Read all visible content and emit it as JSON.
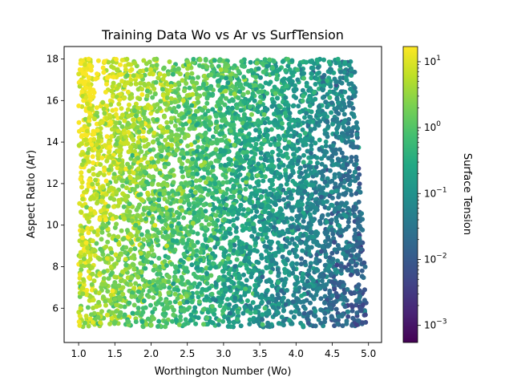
{
  "chart_data": {
    "type": "scatter",
    "title": "Training Data Wo vs Ar vs SurfTension",
    "xlabel": "Worthington Number (Wo)",
    "ylabel": "Aspect Ratio (Ar)",
    "xlim": [
      0.8,
      5.18
    ],
    "ylim": [
      4.35,
      18.6
    ],
    "x_ticks": [
      "1.0",
      "1.5",
      "2.0",
      "2.5",
      "3.0",
      "3.5",
      "4.0",
      "4.5",
      "5.0"
    ],
    "y_ticks": [
      "6",
      "8",
      "10",
      "12",
      "14",
      "16",
      "18"
    ],
    "grid": false,
    "colorbar": {
      "label": "Surface Tension",
      "scale": "log",
      "colormap": "viridis",
      "range": [
        0.00055,
        17
      ],
      "ticks": [
        {
          "base": "10",
          "exp": "1",
          "value": 10
        },
        {
          "base": "10",
          "exp": "0",
          "value": 1
        },
        {
          "base": "10",
          "exp": "−1",
          "value": 0.1
        },
        {
          "base": "10",
          "exp": "−2",
          "value": 0.01
        },
        {
          "base": "10",
          "exp": "−3",
          "value": 0.001
        }
      ]
    },
    "point_distribution": {
      "description_source": "approximate sampled cloud",
      "x_range": [
        1.0,
        5.0
      ],
      "y_range": [
        5.1,
        18.0
      ],
      "x_max_at_y_min": 5.0,
      "x_max_at_y_max": 4.8,
      "narrow_band_x": [
        1.0,
        1.2
      ],
      "narrow_band_y_top": 18.0,
      "color_trend": "surface tension decreases with increasing Wo and decreasing Ar"
    },
    "colors": {
      "axes": "#000000",
      "background": "#ffffff"
    }
  }
}
